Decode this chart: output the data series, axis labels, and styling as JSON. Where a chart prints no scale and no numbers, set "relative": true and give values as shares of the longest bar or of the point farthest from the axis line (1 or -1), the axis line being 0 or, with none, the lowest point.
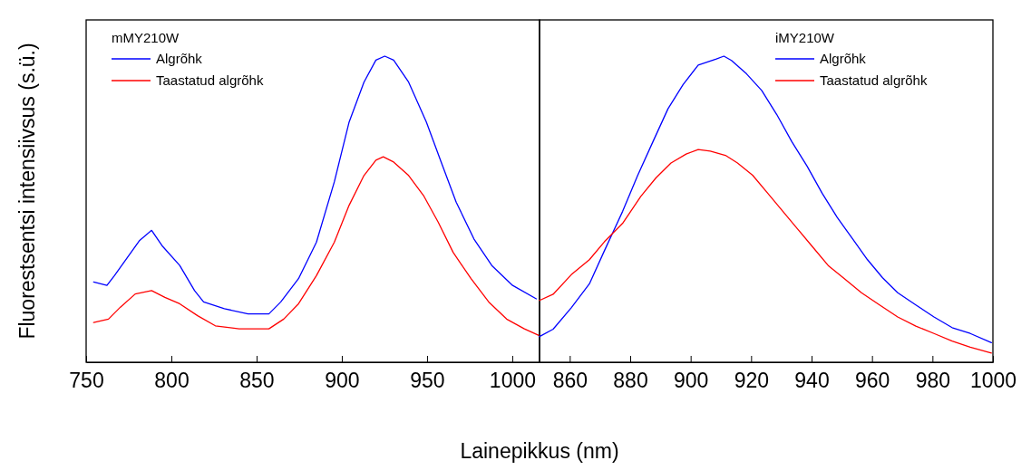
{
  "chart_data": [
    {
      "type": "line",
      "legend_title": "mMY210W",
      "ylabel": "Fluorestsentsi intensiivsus (s.ü.)",
      "xlabel": "Lainepikkus (nm)",
      "relative": true,
      "legend": "top left",
      "xlim": [
        750,
        1016
      ],
      "xticks": [
        750,
        800,
        850,
        900,
        950,
        1000
      ],
      "series": [
        {
          "name": "Algrõhk",
          "color": "#0000ff",
          "x": [
            754.4,
            762.2,
            766.6,
            781.4,
            788.4,
            794.5,
            804.9,
            813.6,
            818.9,
            831.1,
            845.0,
            857.2,
            864.2,
            874.6,
            885.1,
            895.6,
            904.3,
            913.0,
            920.0,
            925.2,
            930.4,
            939.2,
            949.6,
            958.3,
            967.1,
            977.5,
            988.0,
            1000.2,
            1014.1
          ],
          "values": [
            0.262,
            0.251,
            0.283,
            0.398,
            0.431,
            0.381,
            0.316,
            0.234,
            0.197,
            0.175,
            0.158,
            0.158,
            0.197,
            0.273,
            0.392,
            0.589,
            0.785,
            0.915,
            0.987,
            1,
            0.987,
            0.915,
            0.785,
            0.654,
            0.523,
            0.403,
            0.316,
            0.251,
            0.207
          ]
        },
        {
          "name": "Taastatud algrõhk",
          "color": "#ff0000",
          "x": [
            754.4,
            763.1,
            770.1,
            778.8,
            788.4,
            796.2,
            804.9,
            815.4,
            825.8,
            839.8,
            857.2,
            865.9,
            874.6,
            885.1,
            895.6,
            904.3,
            913.0,
            920.0,
            924.3,
            930.4,
            939.2,
            947.9,
            956.6,
            965.3,
            975.8,
            986.2,
            996.7,
            1007.1,
            1015.9
          ],
          "values": [
            0.13,
            0.141,
            0.18,
            0.223,
            0.234,
            0.212,
            0.191,
            0.152,
            0.119,
            0.109,
            0.109,
            0.141,
            0.191,
            0.283,
            0.392,
            0.513,
            0.61,
            0.66,
            0.671,
            0.654,
            0.61,
            0.545,
            0.457,
            0.359,
            0.273,
            0.197,
            0.141,
            0.109,
            0.087
          ]
        }
      ]
    },
    {
      "type": "line",
      "legend_title": "iMY210W",
      "relative": true,
      "legend": "top right",
      "xlim": [
        850,
        1000
      ],
      "xticks": [
        860,
        880,
        900,
        920,
        940,
        960,
        980,
        1000
      ],
      "series": [
        {
          "name": "Algrõhk",
          "color": "#0000ff",
          "x": [
            850.0,
            854.5,
            860.5,
            866.5,
            871.5,
            877.5,
            882.5,
            887.5,
            892.5,
            897.5,
            902.5,
            908.5,
            911.0,
            913.5,
            918.5,
            923.5,
            928.5,
            933.5,
            938.5,
            943.5,
            948.5,
            953.5,
            958.5,
            963.5,
            968.5,
            974.5,
            980.5,
            986.5,
            992.5,
            999.5
          ],
          "values": [
            0.084,
            0.108,
            0.178,
            0.256,
            0.365,
            0.493,
            0.611,
            0.72,
            0.828,
            0.907,
            0.971,
            0.991,
            1,
            0.986,
            0.942,
            0.888,
            0.809,
            0.72,
            0.641,
            0.552,
            0.473,
            0.404,
            0.335,
            0.276,
            0.227,
            0.187,
            0.148,
            0.113,
            0.094,
            0.064
          ]
        },
        {
          "name": "Taastatud algrõhk",
          "color": "#ff0000",
          "x": [
            850.0,
            854.5,
            860.5,
            866.5,
            871.5,
            877.5,
            883.5,
            888.5,
            893.5,
            898.5,
            902.5,
            906.5,
            911.5,
            915.5,
            920.5,
            925.5,
            930.5,
            935.5,
            940.5,
            945.5,
            950.5,
            956.5,
            962.5,
            968.5,
            974.5,
            980.5,
            986.5,
            992.5,
            999.5
          ],
          "values": [
            0.202,
            0.222,
            0.286,
            0.335,
            0.394,
            0.454,
            0.542,
            0.602,
            0.651,
            0.68,
            0.695,
            0.69,
            0.676,
            0.651,
            0.611,
            0.552,
            0.493,
            0.434,
            0.375,
            0.316,
            0.276,
            0.227,
            0.187,
            0.148,
            0.118,
            0.094,
            0.069,
            0.049,
            0.03
          ]
        }
      ]
    }
  ]
}
